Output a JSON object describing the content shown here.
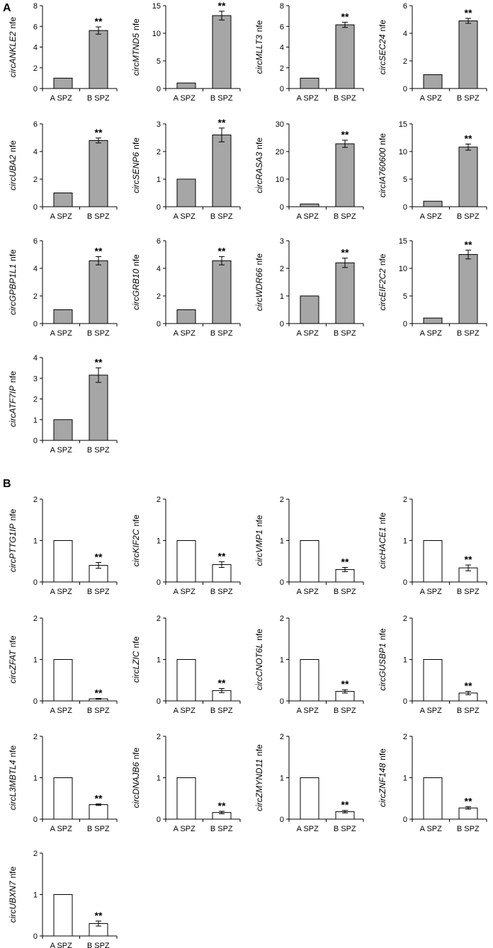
{
  "panels": [
    {
      "label": "A",
      "bar_color": "#a6a6a6"
    },
    {
      "label": "B",
      "bar_color": "#ffffff"
    }
  ],
  "chart_data": [
    {
      "panel": "A",
      "type": "bar",
      "gene": "circANKLE2",
      "suffix": "nfe",
      "categories": [
        "A SPZ",
        "B SPZ"
      ],
      "values": [
        1,
        5.6
      ],
      "errors": [
        0,
        0.35
      ],
      "ylim": [
        0,
        8
      ],
      "yticks": [
        "0",
        "2",
        "4",
        "6",
        "8"
      ],
      "annotation": "**"
    },
    {
      "panel": "A",
      "type": "bar",
      "gene": "circMTND5",
      "suffix": "nfe",
      "categories": [
        "A SPZ",
        "B SPZ"
      ],
      "values": [
        1,
        13.2
      ],
      "errors": [
        0,
        0.8
      ],
      "ylim": [
        0,
        15
      ],
      "yticks": [
        "0",
        "5",
        "10",
        "15"
      ],
      "annotation": "**"
    },
    {
      "panel": "A",
      "type": "bar",
      "gene": "circMLLT3",
      "suffix": "nfe",
      "categories": [
        "A SPZ",
        "B SPZ"
      ],
      "values": [
        1,
        6.15
      ],
      "errors": [
        0,
        0.25
      ],
      "ylim": [
        0,
        8
      ],
      "yticks": [
        "0",
        "2",
        "4",
        "6",
        "8"
      ],
      "annotation": "**"
    },
    {
      "panel": "A",
      "type": "bar",
      "gene": "circSEC24",
      "suffix": "nfe",
      "categories": [
        "A SPZ",
        "B SPZ"
      ],
      "values": [
        1,
        4.9
      ],
      "errors": [
        0,
        0.18
      ],
      "ylim": [
        0,
        6
      ],
      "yticks": [
        "0",
        "2",
        "4",
        "6"
      ],
      "annotation": "**"
    },
    {
      "panel": "A",
      "type": "bar",
      "gene": "circUBA2",
      "suffix": "nfe",
      "categories": [
        "A SPZ",
        "B SPZ"
      ],
      "values": [
        1,
        4.8
      ],
      "errors": [
        0,
        0.18
      ],
      "ylim": [
        0,
        6
      ],
      "yticks": [
        "0",
        "2",
        "4",
        "6"
      ],
      "annotation": "**"
    },
    {
      "panel": "A",
      "type": "bar",
      "gene": "circSENP6",
      "suffix": "nfe",
      "categories": [
        "A SPZ",
        "B SPZ"
      ],
      "values": [
        1,
        2.6
      ],
      "errors": [
        0,
        0.25
      ],
      "ylim": [
        0,
        3
      ],
      "yticks": [
        "0",
        "1",
        "2",
        "3"
      ],
      "annotation": "**"
    },
    {
      "panel": "A",
      "type": "bar",
      "gene": "circRASA3",
      "suffix": "nfe",
      "categories": [
        "A SPZ",
        "B SPZ"
      ],
      "values": [
        1,
        22.8
      ],
      "errors": [
        0,
        1.3
      ],
      "ylim": [
        0,
        30
      ],
      "yticks": [
        "0",
        "10",
        "20",
        "30"
      ],
      "annotation": "**"
    },
    {
      "panel": "A",
      "type": "bar",
      "gene": "circIA760600",
      "suffix": "nfe",
      "categories": [
        "A SPZ",
        "B SPZ"
      ],
      "values": [
        1,
        10.8
      ],
      "errors": [
        0,
        0.55
      ],
      "ylim": [
        0,
        15
      ],
      "yticks": [
        "0",
        "5",
        "10",
        "15"
      ],
      "annotation": "**"
    },
    {
      "panel": "A",
      "type": "bar",
      "gene": "circGPBP1L1",
      "suffix": "nfe",
      "categories": [
        "A SPZ",
        "B SPZ"
      ],
      "values": [
        1,
        4.55
      ],
      "errors": [
        0,
        0.3
      ],
      "ylim": [
        0,
        6
      ],
      "yticks": [
        "0",
        "2",
        "4",
        "6"
      ],
      "annotation": "**"
    },
    {
      "panel": "A",
      "type": "bar",
      "gene": "circGRB10",
      "suffix": "nfe",
      "categories": [
        "A SPZ",
        "B SPZ"
      ],
      "values": [
        1,
        4.55
      ],
      "errors": [
        0,
        0.3
      ],
      "ylim": [
        0,
        6
      ],
      "yticks": [
        "0",
        "2",
        "4",
        "6"
      ],
      "annotation": "**"
    },
    {
      "panel": "A",
      "type": "bar",
      "gene": "circWDR66",
      "suffix": "nfe",
      "categories": [
        "A SPZ",
        "B SPZ"
      ],
      "values": [
        1,
        2.2
      ],
      "errors": [
        0,
        0.17
      ],
      "ylim": [
        0,
        3
      ],
      "yticks": [
        "0",
        "1",
        "2",
        "3"
      ],
      "annotation": "**"
    },
    {
      "panel": "A",
      "type": "bar",
      "gene": "circEIF2C2",
      "suffix": "nfe",
      "categories": [
        "A SPZ",
        "B SPZ"
      ],
      "values": [
        1,
        12.5
      ],
      "errors": [
        0,
        0.8
      ],
      "ylim": [
        0,
        15
      ],
      "yticks": [
        "0",
        "5",
        "10",
        "15"
      ],
      "annotation": "**"
    },
    {
      "panel": "A",
      "type": "bar",
      "gene": "circATF7IP",
      "suffix": "nfe",
      "categories": [
        "A SPZ",
        "B SPZ"
      ],
      "values": [
        1,
        3.15
      ],
      "errors": [
        0,
        0.35
      ],
      "ylim": [
        0,
        4
      ],
      "yticks": [
        "0",
        "1",
        "2",
        "3",
        "4"
      ],
      "annotation": "**"
    },
    {
      "panel": "B",
      "type": "bar",
      "gene": "circPTTG1IP",
      "suffix": "nfe",
      "categories": [
        "A SPZ",
        "B SPZ"
      ],
      "values": [
        1,
        0.4
      ],
      "errors": [
        0,
        0.07
      ],
      "ylim": [
        0,
        2
      ],
      "yticks": [
        "0",
        "1",
        "2"
      ],
      "annotation": "**"
    },
    {
      "panel": "B",
      "type": "bar",
      "gene": "circKIF2C",
      "suffix": "nfe",
      "categories": [
        "A SPZ",
        "B SPZ"
      ],
      "values": [
        1,
        0.42
      ],
      "errors": [
        0,
        0.07
      ],
      "ylim": [
        0,
        2
      ],
      "yticks": [
        "0",
        "1",
        "2"
      ],
      "annotation": "**"
    },
    {
      "panel": "B",
      "type": "bar",
      "gene": "circVMP1",
      "suffix": "nfe",
      "categories": [
        "A SPZ",
        "B SPZ"
      ],
      "values": [
        1,
        0.3
      ],
      "errors": [
        0,
        0.05
      ],
      "ylim": [
        0,
        2
      ],
      "yticks": [
        "0",
        "1",
        "2"
      ],
      "annotation": "**"
    },
    {
      "panel": "B",
      "type": "bar",
      "gene": "circHACE1",
      "suffix": "nfe",
      "categories": [
        "A SPZ",
        "B SPZ"
      ],
      "values": [
        1,
        0.34
      ],
      "errors": [
        0,
        0.07
      ],
      "ylim": [
        0,
        2
      ],
      "yticks": [
        "0",
        "1",
        "2"
      ],
      "annotation": "**"
    },
    {
      "panel": "B",
      "type": "bar",
      "gene": "circZFAT",
      "suffix": "nfe",
      "categories": [
        "A SPZ",
        "B SPZ"
      ],
      "values": [
        1,
        0.05
      ],
      "errors": [
        0,
        0.01
      ],
      "ylim": [
        0,
        2
      ],
      "yticks": [
        "0",
        "1",
        "2"
      ],
      "annotation": "**"
    },
    {
      "panel": "B",
      "type": "bar",
      "gene": "circLZIC",
      "suffix": "nfe",
      "categories": [
        "A SPZ",
        "B SPZ"
      ],
      "values": [
        1,
        0.25
      ],
      "errors": [
        0,
        0.05
      ],
      "ylim": [
        0,
        2
      ],
      "yticks": [
        "0",
        "1",
        "2"
      ],
      "annotation": "**"
    },
    {
      "panel": "B",
      "type": "bar",
      "gene": "circCNOT6L",
      "suffix": "nfe",
      "categories": [
        "A SPZ",
        "B SPZ"
      ],
      "values": [
        1,
        0.23
      ],
      "errors": [
        0,
        0.04
      ],
      "ylim": [
        0,
        2
      ],
      "yticks": [
        "0",
        "1",
        "2"
      ],
      "annotation": "**"
    },
    {
      "panel": "B",
      "type": "bar",
      "gene": "circGUSBP1",
      "suffix": "nfe",
      "categories": [
        "A SPZ",
        "B SPZ"
      ],
      "values": [
        1,
        0.19
      ],
      "errors": [
        0,
        0.04
      ],
      "ylim": [
        0,
        2
      ],
      "yticks": [
        "0",
        "1",
        "2"
      ],
      "annotation": "**"
    },
    {
      "panel": "B",
      "type": "bar",
      "gene": "circL3MBTL4",
      "suffix": "nfe",
      "categories": [
        "A SPZ",
        "B SPZ"
      ],
      "values": [
        1,
        0.35
      ],
      "errors": [
        0,
        0.02
      ],
      "ylim": [
        0,
        2
      ],
      "yticks": [
        "0",
        "1",
        "2"
      ],
      "annotation": "**"
    },
    {
      "panel": "B",
      "type": "bar",
      "gene": "circDNAJB6",
      "suffix": "nfe",
      "categories": [
        "A SPZ",
        "B SPZ"
      ],
      "values": [
        1,
        0.16
      ],
      "errors": [
        0,
        0.03
      ],
      "ylim": [
        0,
        2
      ],
      "yticks": [
        "0",
        "1",
        "2"
      ],
      "annotation": "**"
    },
    {
      "panel": "B",
      "type": "bar",
      "gene": "circZMYND11",
      "suffix": "nfe",
      "categories": [
        "A SPZ",
        "B SPZ"
      ],
      "values": [
        1,
        0.18
      ],
      "errors": [
        0,
        0.03
      ],
      "ylim": [
        0,
        2
      ],
      "yticks": [
        "0",
        "1",
        "2"
      ],
      "annotation": "**"
    },
    {
      "panel": "B",
      "type": "bar",
      "gene": "circZNF148",
      "suffix": "nfe",
      "categories": [
        "A SPZ",
        "B SPZ"
      ],
      "values": [
        1,
        0.27
      ],
      "errors": [
        0,
        0.03
      ],
      "ylim": [
        0,
        2
      ],
      "yticks": [
        "0",
        "1",
        "2"
      ],
      "annotation": "**"
    },
    {
      "panel": "B",
      "type": "bar",
      "gene": "circUBXN7",
      "suffix": "nfe",
      "categories": [
        "A SPZ",
        "B SPZ"
      ],
      "values": [
        1,
        0.3
      ],
      "errors": [
        0,
        0.06
      ],
      "ylim": [
        0,
        2
      ],
      "yticks": [
        "0",
        "1",
        "2"
      ],
      "annotation": "**"
    }
  ]
}
